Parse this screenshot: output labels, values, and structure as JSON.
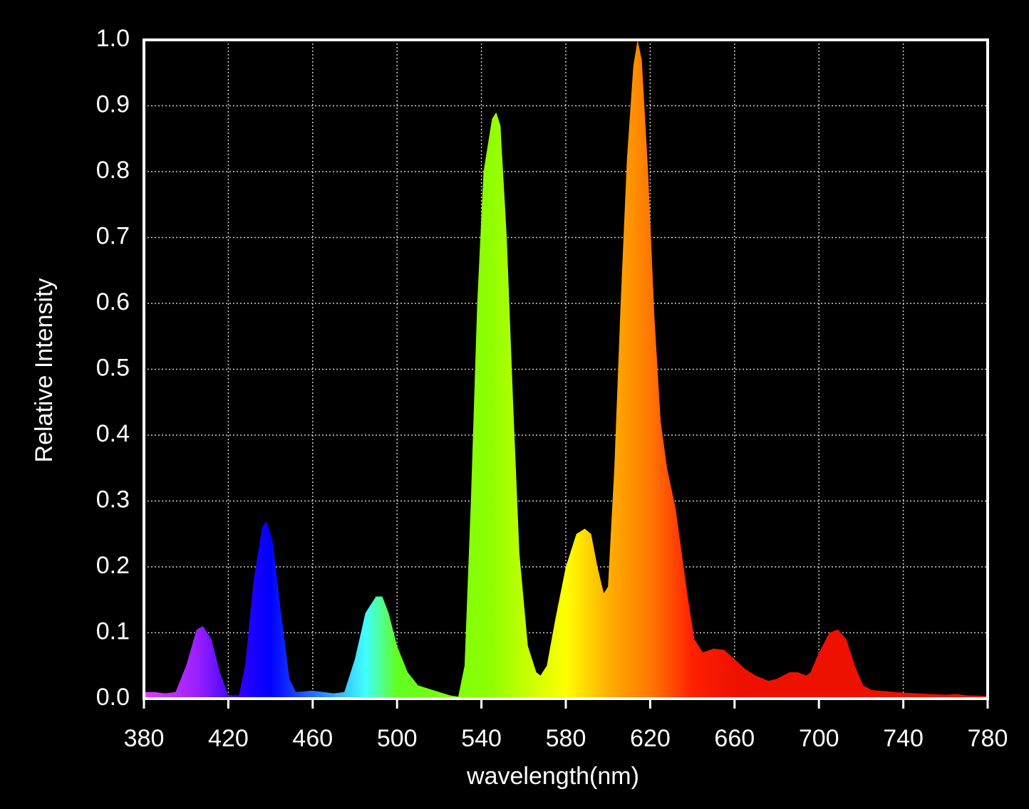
{
  "chart_data": {
    "type": "area",
    "x_label": "wavelength(nm)",
    "y_label": "Relative Intensity",
    "xlim": [
      380,
      780
    ],
    "ylim": [
      0,
      1
    ],
    "xticks": [
      380,
      420,
      460,
      500,
      540,
      580,
      620,
      660,
      700,
      740,
      780
    ],
    "yticks": [
      {
        "value": 0,
        "label": "0.0"
      },
      {
        "value": 0.1,
        "label": "0.1"
      },
      {
        "value": 0.2,
        "label": "0.2"
      },
      {
        "value": 0.3,
        "label": "0.3"
      },
      {
        "value": 0.4,
        "label": "0.4"
      },
      {
        "value": 0.5,
        "label": "0.5"
      },
      {
        "value": 0.6,
        "label": "0.6"
      },
      {
        "value": 0.7,
        "label": "0.7"
      },
      {
        "value": 0.8,
        "label": "0.8"
      },
      {
        "value": 0.9,
        "label": "0.9"
      },
      {
        "value": 1,
        "label": "1.0"
      }
    ],
    "grid": true,
    "gradient": [
      {
        "x": 380,
        "color": "#e040ff"
      },
      {
        "x": 405,
        "color": "#9a20ff"
      },
      {
        "x": 425,
        "color": "#3000ff"
      },
      {
        "x": 440,
        "color": "#0000ff"
      },
      {
        "x": 455,
        "color": "#2050ff"
      },
      {
        "x": 485,
        "color": "#40ffff"
      },
      {
        "x": 500,
        "color": "#60ff20"
      },
      {
        "x": 545,
        "color": "#90ff00"
      },
      {
        "x": 565,
        "color": "#d0ff00"
      },
      {
        "x": 580,
        "color": "#ffff00"
      },
      {
        "x": 600,
        "color": "#ffb000"
      },
      {
        "x": 620,
        "color": "#ff7800"
      },
      {
        "x": 640,
        "color": "#ff2000"
      },
      {
        "x": 660,
        "color": "#ee1100"
      },
      {
        "x": 780,
        "color": "#ee1100"
      }
    ],
    "x": [
      380,
      385,
      390,
      395,
      400,
      405,
      408,
      412,
      416,
      420,
      425,
      428,
      432,
      436,
      438,
      441,
      445,
      449,
      452,
      460,
      470,
      475,
      480,
      485,
      490,
      493,
      496,
      500,
      505,
      510,
      520,
      525,
      529,
      532,
      535,
      538,
      541,
      545,
      547,
      549,
      552,
      555,
      558,
      562,
      566,
      568,
      571,
      575,
      580,
      585,
      589,
      592,
      595,
      598,
      600,
      603,
      606,
      609,
      612,
      614,
      616,
      619,
      622,
      625,
      628,
      632,
      635,
      638,
      641,
      645,
      650,
      655,
      660,
      665,
      670,
      676,
      680,
      686,
      690,
      694,
      696,
      700,
      705,
      709,
      713,
      717,
      721,
      725,
      740,
      760,
      765,
      770,
      780
    ],
    "values": [
      0.01,
      0.01,
      0.008,
      0.01,
      0.05,
      0.105,
      0.11,
      0.09,
      0.04,
      0.005,
      0.005,
      0.05,
      0.18,
      0.26,
      0.27,
      0.24,
      0.13,
      0.03,
      0.01,
      0.012,
      0.008,
      0.01,
      0.06,
      0.13,
      0.155,
      0.155,
      0.13,
      0.08,
      0.04,
      0.02,
      0.01,
      0.005,
      0.003,
      0.05,
      0.3,
      0.6,
      0.8,
      0.88,
      0.89,
      0.87,
      0.7,
      0.45,
      0.22,
      0.08,
      0.04,
      0.035,
      0.05,
      0.12,
      0.2,
      0.25,
      0.258,
      0.25,
      0.2,
      0.16,
      0.17,
      0.35,
      0.6,
      0.82,
      0.96,
      1.0,
      0.97,
      0.8,
      0.58,
      0.42,
      0.35,
      0.29,
      0.22,
      0.15,
      0.09,
      0.07,
      0.076,
      0.074,
      0.06,
      0.045,
      0.035,
      0.027,
      0.03,
      0.04,
      0.04,
      0.035,
      0.04,
      0.07,
      0.1,
      0.105,
      0.09,
      0.05,
      0.02,
      0.013,
      0.009,
      0.006,
      0.007,
      0.005,
      0.004
    ]
  }
}
